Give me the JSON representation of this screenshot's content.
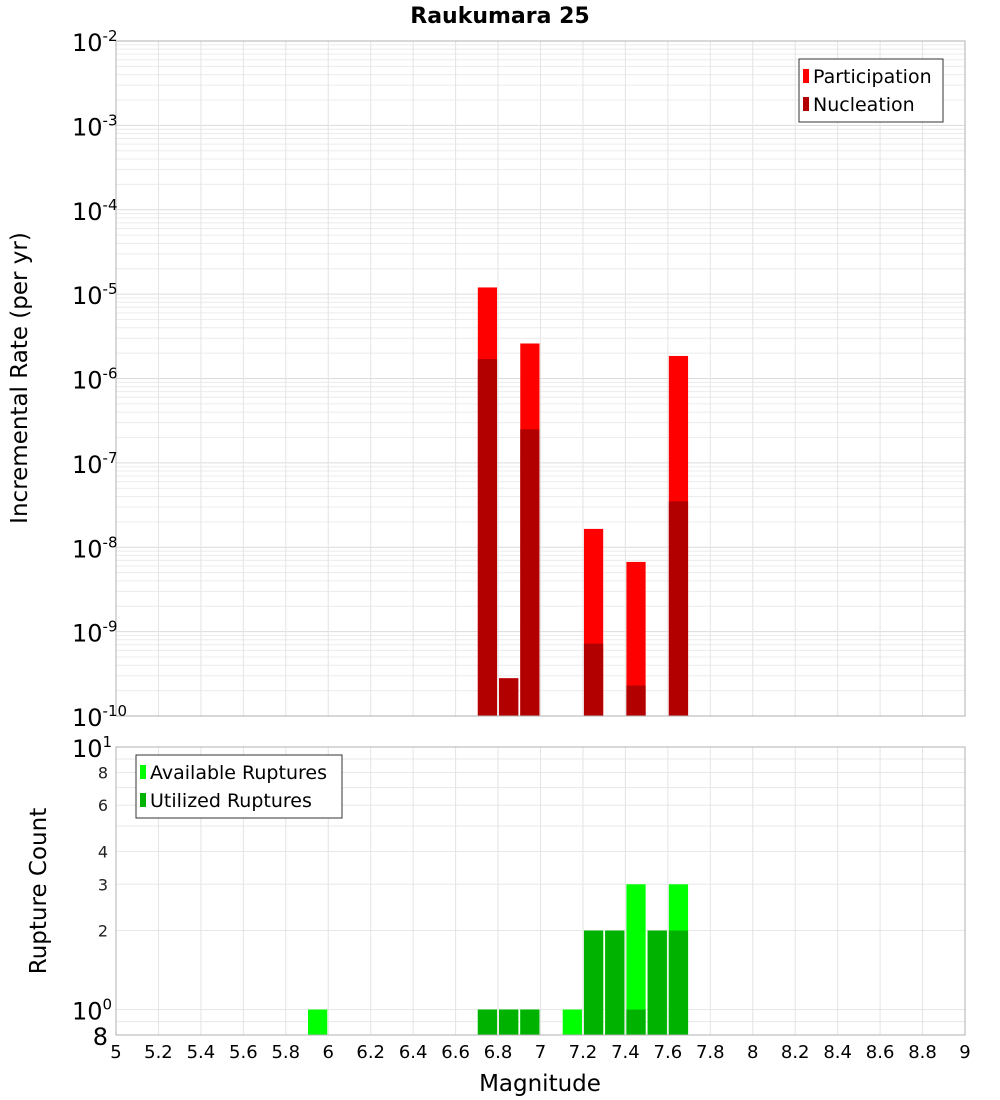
{
  "chart_data": [
    {
      "type": "bar",
      "title": "Raukumara 25",
      "xlabel": "",
      "ylabel": "Incremental Rate (per yr)",
      "yscale": "log",
      "ylim": [
        1e-10,
        0.01
      ],
      "xlim": [
        5,
        9
      ],
      "x_ticks": [
        "5",
        "5.2",
        "5.4",
        "5.6",
        "5.8",
        "6",
        "6.2",
        "6.4",
        "6.6",
        "6.8",
        "7",
        "7.2",
        "7.4",
        "7.6",
        "7.8",
        "8",
        "8.2",
        "8.4",
        "8.6",
        "8.8",
        "9"
      ],
      "y_ticks": [
        {
          "base": "10",
          "exp": "-2"
        },
        {
          "base": "10",
          "exp": "-3"
        },
        {
          "base": "10",
          "exp": "-4"
        },
        {
          "base": "10",
          "exp": "-5"
        },
        {
          "base": "10",
          "exp": "-6"
        },
        {
          "base": "10",
          "exp": "-7"
        },
        {
          "base": "10",
          "exp": "-8"
        },
        {
          "base": "10",
          "exp": "-9"
        },
        {
          "base": "10",
          "exp": "-10"
        }
      ],
      "bin_width": 0.1,
      "grid": true,
      "legend_position": "top-right",
      "series": [
        {
          "name": "Participation",
          "color": "#ff0000",
          "points": [
            {
              "x": 6.75,
              "y": 1.2e-05
            },
            {
              "x": 6.85,
              "y": 2.8e-10
            },
            {
              "x": 6.95,
              "y": 2.6e-06
            },
            {
              "x": 7.25,
              "y": 1.65e-08
            },
            {
              "x": 7.45,
              "y": 6.7e-09
            },
            {
              "x": 7.65,
              "y": 1.85e-06
            }
          ]
        },
        {
          "name": "Nucleation",
          "color": "#b20000",
          "points": [
            {
              "x": 6.75,
              "y": 1.7e-06
            },
            {
              "x": 6.85,
              "y": 2.8e-10
            },
            {
              "x": 6.95,
              "y": 2.5e-07
            },
            {
              "x": 7.25,
              "y": 7.2e-10
            },
            {
              "x": 7.45,
              "y": 2.3e-10
            },
            {
              "x": 7.65,
              "y": 3.5e-08
            }
          ]
        }
      ]
    },
    {
      "type": "bar",
      "title": "",
      "xlabel": "Magnitude",
      "ylabel": "Rupture Count",
      "yscale": "log",
      "ylim": [
        0.8,
        10
      ],
      "xlim": [
        5,
        9
      ],
      "x_ticks": [
        "5",
        "5.2",
        "5.4",
        "5.6",
        "5.8",
        "6",
        "6.2",
        "6.4",
        "6.6",
        "6.8",
        "7",
        "7.2",
        "7.4",
        "7.6",
        "7.8",
        "8",
        "8.2",
        "8.4",
        "8.6",
        "8.8",
        "9"
      ],
      "y_major_ticks": [
        {
          "value": 10,
          "base": "10",
          "exp": "1"
        },
        {
          "value": 1,
          "base": "10",
          "exp": "0"
        }
      ],
      "y_minor_ticks": [
        {
          "value": 8,
          "label": "8"
        },
        {
          "value": 6,
          "label": "6"
        },
        {
          "value": 4,
          "label": "4"
        },
        {
          "value": 3,
          "label": "3"
        },
        {
          "value": 2,
          "label": "2"
        },
        {
          "value": 0.8,
          "label": "8"
        }
      ],
      "bin_width": 0.1,
      "grid": true,
      "legend_position": "top-left",
      "series": [
        {
          "name": "Available Ruptures",
          "color": "#00ff00",
          "points": [
            {
              "x": 5.95,
              "y": 1
            },
            {
              "x": 6.75,
              "y": 1
            },
            {
              "x": 6.85,
              "y": 1
            },
            {
              "x": 6.95,
              "y": 1
            },
            {
              "x": 7.15,
              "y": 1
            },
            {
              "x": 7.25,
              "y": 2
            },
            {
              "x": 7.35,
              "y": 2
            },
            {
              "x": 7.45,
              "y": 3
            },
            {
              "x": 7.55,
              "y": 2
            },
            {
              "x": 7.65,
              "y": 3
            }
          ]
        },
        {
          "name": "Utilized Ruptures",
          "color": "#00b200",
          "points": [
            {
              "x": 6.75,
              "y": 1
            },
            {
              "x": 6.85,
              "y": 1
            },
            {
              "x": 6.95,
              "y": 1
            },
            {
              "x": 7.25,
              "y": 2
            },
            {
              "x": 7.35,
              "y": 2
            },
            {
              "x": 7.45,
              "y": 1
            },
            {
              "x": 7.55,
              "y": 2
            },
            {
              "x": 7.65,
              "y": 2
            }
          ]
        }
      ]
    }
  ]
}
